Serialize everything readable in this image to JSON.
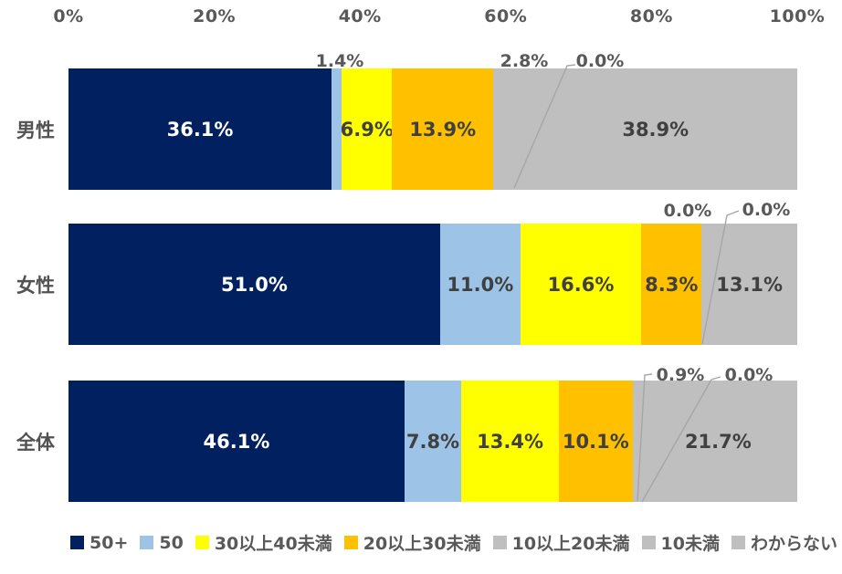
{
  "chart_data": {
    "type": "bar",
    "orientation": "horizontal",
    "stacked": true,
    "title": "",
    "xlabel": "",
    "ylabel": "",
    "xlim": [
      0,
      100
    ],
    "grid": "vertical-major-20pct",
    "legend_position": "bottom",
    "x_ticks": [
      "0%",
      "20%",
      "40%",
      "60%",
      "80%",
      "100%"
    ],
    "categories": [
      "男性",
      "女性",
      "全体"
    ],
    "series": [
      {
        "name": "50+",
        "color": "#002060",
        "values": [
          36.1,
          51.0,
          46.1
        ]
      },
      {
        "name": "50",
        "color": "#9DC3E6",
        "values": [
          1.4,
          11.0,
          7.8
        ]
      },
      {
        "name": "30以上40未満",
        "color": "#FFFF00",
        "values": [
          6.9,
          16.6,
          13.4
        ]
      },
      {
        "name": "20以上30未満",
        "color": "#FFC000",
        "values": [
          13.9,
          8.3,
          10.1
        ]
      },
      {
        "name": "10以上20未満",
        "color": "#BFBFBF",
        "values": [
          2.8,
          0.0,
          0.9
        ]
      },
      {
        "name": "10未満",
        "color": "#BFBFBF",
        "values": [
          0.0,
          0.0,
          0.0
        ]
      },
      {
        "name": "わからない",
        "color": "#BFBFBF",
        "values": [
          38.9,
          13.1,
          21.7
        ]
      }
    ],
    "data_labels": [
      [
        "36.1%",
        "1.4%",
        "6.9%",
        "13.9%",
        "2.8%",
        "0.0%",
        "38.9%"
      ],
      [
        "51.0%",
        "11.0%",
        "16.6%",
        "8.3%",
        "0.0%",
        "0.0%",
        "13.1%"
      ],
      [
        "46.1%",
        "7.8%",
        "13.4%",
        "10.1%",
        "0.9%",
        "0.0%",
        "21.7%"
      ]
    ],
    "legend": [
      "50+",
      "50",
      "30以上40未満",
      "20以上30未満",
      "10以上20未満",
      "10未満",
      "わからない"
    ]
  },
  "colors": {
    "axis_text": "#595959",
    "inside_label": "#404040",
    "inside_label_on_dark": "#FFFFFF",
    "leader_line": "#A6A6A6",
    "gridline": "#FFFFFF",
    "background": "#FFFFFF"
  }
}
